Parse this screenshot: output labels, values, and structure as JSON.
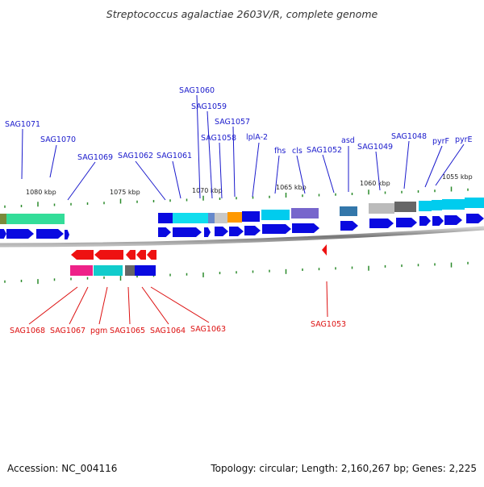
{
  "title": "Streptococcus agalactiae 2603V/R, complete genome",
  "footer": {
    "accession": "Accession: NC_004116",
    "summary": "Topology: circular; Length: 2,160,267 bp; Genes: 2,225"
  },
  "scale_labels": [
    "1080 kbp",
    "1075 kbp",
    "1070 kbp",
    "1065 kbp",
    "1060 kbp",
    "1055 kbp"
  ],
  "forward_genes": [
    "SAG1071",
    "SAG1070",
    "SAG1069",
    "SAG1062",
    "SAG1061",
    "SAG1060",
    "SAG1059",
    "SAG1058",
    "SAG1057",
    "lplA-2",
    "fhs",
    "cls",
    "SAG1052",
    "asd",
    "SAG1049",
    "SAG1048",
    "pyrF",
    "pyrE"
  ],
  "reverse_genes": [
    "SAG1068",
    "SAG1067",
    "pgm",
    "SAG1065",
    "SAG1064",
    "SAG1063",
    "SAG1053"
  ],
  "colors": {
    "forward_label": "#1a1acc",
    "reverse_label": "#dd1111",
    "forward_arrow": "#0a0ae0",
    "reverse_arrow": "#ee1111",
    "backbone": "#888888",
    "tick": "#2a8a2a"
  }
}
